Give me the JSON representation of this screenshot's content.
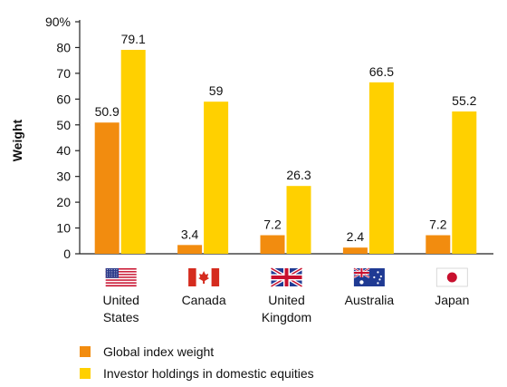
{
  "chart_data": {
    "type": "bar",
    "categories": [
      {
        "label_lines": [
          "United",
          "States"
        ],
        "flag": "us-flag-icon"
      },
      {
        "label_lines": [
          "Canada"
        ],
        "flag": "canada-flag-icon"
      },
      {
        "label_lines": [
          "United",
          "Kingdom"
        ],
        "flag": "uk-flag-icon"
      },
      {
        "label_lines": [
          "Australia"
        ],
        "flag": "australia-flag-icon"
      },
      {
        "label_lines": [
          "Japan"
        ],
        "flag": "japan-flag-icon"
      }
    ],
    "series": [
      {
        "name": "Global index weight",
        "color": "#F28C0F",
        "values": [
          50.9,
          3.4,
          7.2,
          2.4,
          7.2
        ],
        "labels": [
          "50.9",
          "3.4",
          "7.2",
          "2.4",
          "7.2"
        ]
      },
      {
        "name": "Investor holdings in domestic equities",
        "color": "#FFD000",
        "values": [
          79.1,
          59,
          26.3,
          66.5,
          55.2
        ],
        "labels": [
          "79.1",
          "59",
          "26.3",
          "66.5",
          "55.2"
        ]
      }
    ],
    "ylabel": "Weight",
    "ylim": [
      0,
      90
    ],
    "yticks": [
      "0",
      "10",
      "20",
      "30",
      "40",
      "50",
      "60",
      "70",
      "80",
      "90%"
    ],
    "grid": false,
    "legend_position": "bottom-left"
  }
}
